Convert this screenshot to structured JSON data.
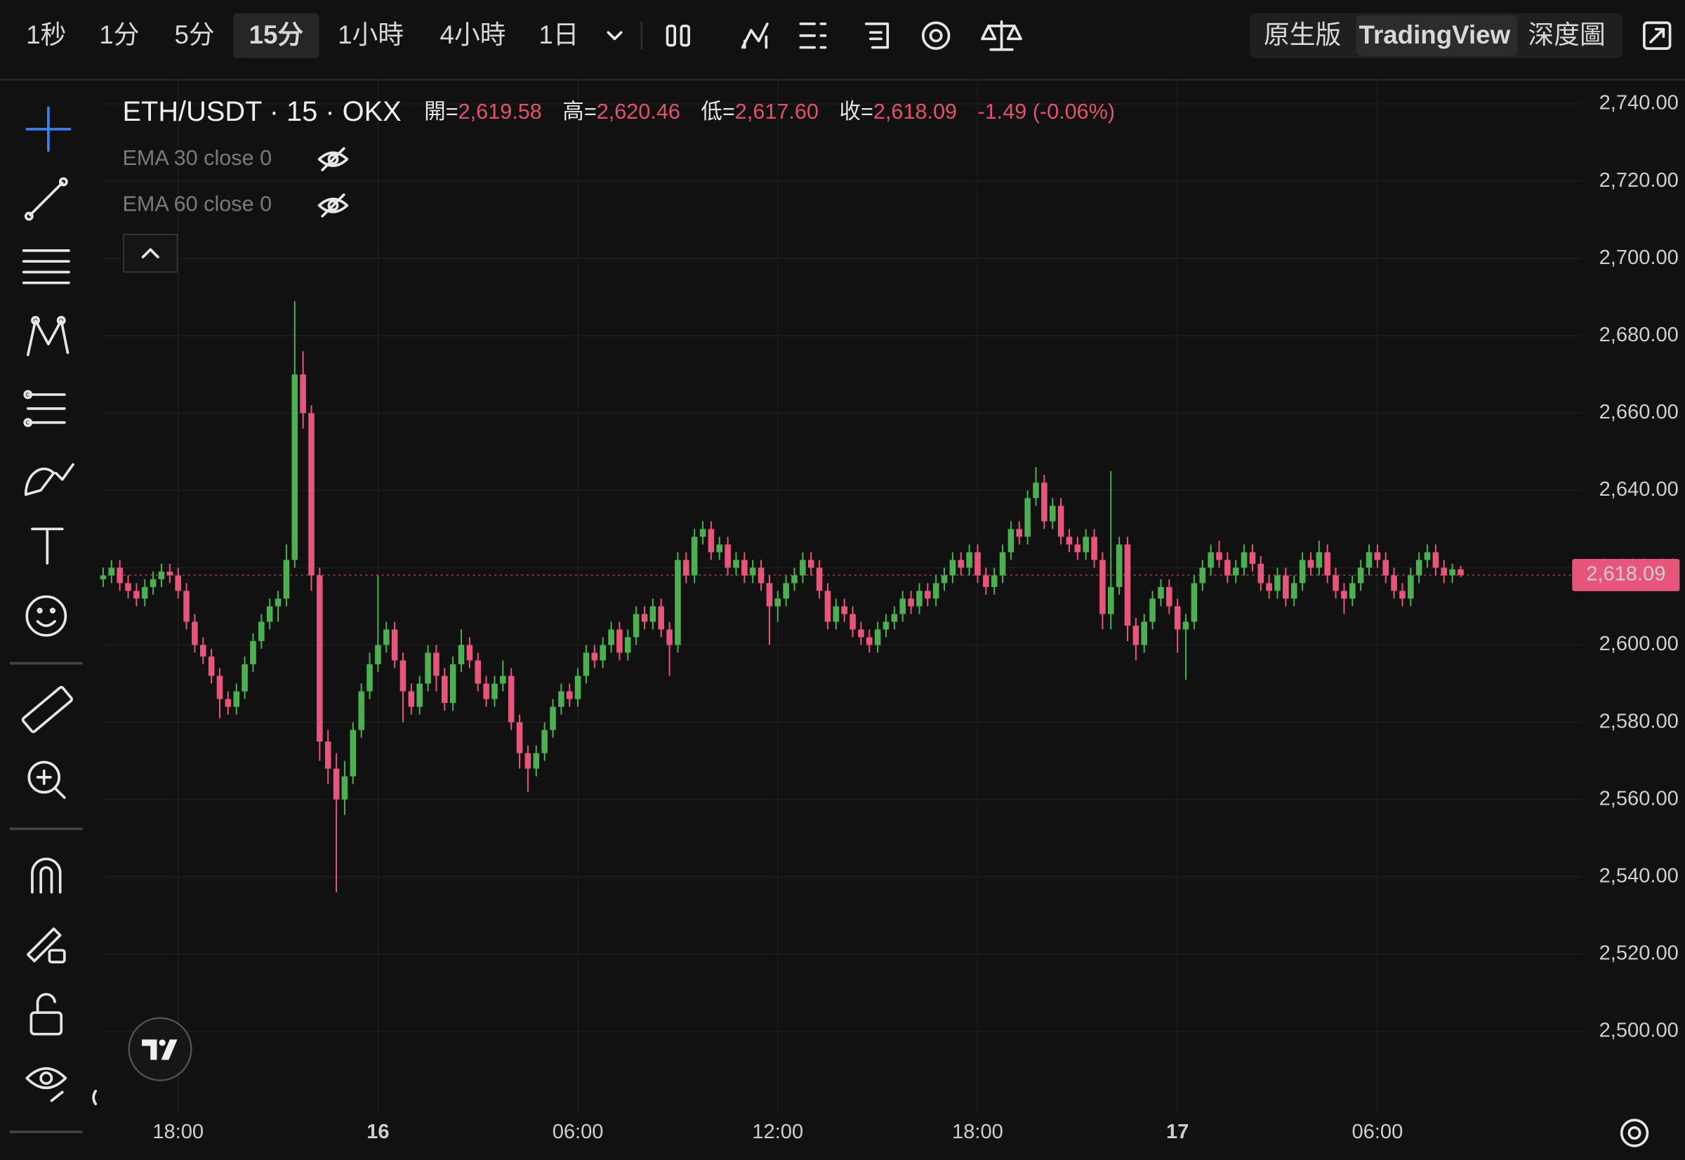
{
  "toolbar": {
    "intervals": [
      "1秒",
      "1分",
      "5分",
      "15分",
      "1小時",
      "4小時",
      "1日"
    ],
    "selected_interval": 3,
    "views": [
      "原生版",
      "TradingView",
      "深度圖"
    ],
    "selected_view": 1
  },
  "legend": {
    "symbol": "ETH/USDT · 15 · OKX",
    "open_label": "開=",
    "open": "2,619.58",
    "high_label": "高=",
    "high": "2,620.46",
    "low_label": "低=",
    "low": "2,617.60",
    "close_label": "收=",
    "close": "2,618.09",
    "change": "-1.49 (-0.06%)"
  },
  "indicators": [
    "EMA 30 close 0",
    "EMA 60 close 0"
  ],
  "chart_data": {
    "type": "candlestick",
    "up_color": "#4caf50",
    "down_color": "#e8557a",
    "grid": true,
    "categories": [
      null,
      null,
      null,
      null,
      null,
      null,
      null,
      null,
      null,
      "18:00",
      null,
      null,
      null,
      null,
      null,
      null,
      null,
      null,
      null,
      null,
      null,
      null,
      null,
      null,
      null,
      null,
      null,
      null,
      null,
      null,
      null,
      null,
      null,
      "16",
      null,
      null,
      null,
      null,
      null,
      null,
      null,
      null,
      null,
      null,
      null,
      null,
      null,
      null,
      null,
      null,
      null,
      null,
      null,
      null,
      null,
      null,
      null,
      "06:00",
      null,
      null,
      null,
      null,
      null,
      null,
      null,
      null,
      null,
      null,
      null,
      null,
      null,
      null,
      null,
      null,
      null,
      null,
      null,
      null,
      null,
      null,
      null,
      "12:00",
      null,
      null,
      null,
      null,
      null,
      null,
      null,
      null,
      null,
      null,
      null,
      null,
      null,
      null,
      null,
      null,
      null,
      null,
      null,
      null,
      null,
      null,
      null,
      "18:00",
      null,
      null,
      null,
      null,
      null,
      null,
      null,
      null,
      null,
      null,
      null,
      null,
      null,
      null,
      null,
      null,
      null,
      null,
      null,
      null,
      null,
      null,
      null,
      "17",
      null,
      null,
      null,
      null,
      null,
      null,
      null,
      null,
      null,
      null,
      null,
      null,
      null,
      null,
      null,
      null,
      null,
      null,
      null,
      null,
      null,
      null,
      null,
      "06:00",
      null,
      null,
      null,
      null,
      null,
      null,
      null,
      null,
      null,
      null
    ],
    "ohlc": [
      [
        2617,
        2620,
        2615,
        2618
      ],
      [
        2618,
        2622,
        2616,
        2620
      ],
      [
        2620,
        2622,
        2614,
        2616
      ],
      [
        2616,
        2618,
        2612,
        2614
      ],
      [
        2614,
        2616,
        2610,
        2612
      ],
      [
        2612,
        2617,
        2610,
        2615
      ],
      [
        2615,
        2619,
        2613,
        2617
      ],
      [
        2617,
        2621,
        2615,
        2619
      ],
      [
        2619,
        2621,
        2616,
        2618
      ],
      [
        2618,
        2620,
        2612,
        2614
      ],
      [
        2614,
        2616,
        2604,
        2606
      ],
      [
        2606,
        2608,
        2598,
        2600
      ],
      [
        2600,
        2602,
        2595,
        2597
      ],
      [
        2597,
        2599,
        2590,
        2592
      ],
      [
        2592,
        2594,
        2581,
        2586
      ],
      [
        2586,
        2588,
        2582,
        2584
      ],
      [
        2584,
        2590,
        2582,
        2588
      ],
      [
        2588,
        2597,
        2586,
        2595
      ],
      [
        2595,
        2603,
        2593,
        2601
      ],
      [
        2601,
        2608,
        2599,
        2606
      ],
      [
        2606,
        2612,
        2604,
        2610
      ],
      [
        2610,
        2614,
        2606,
        2612
      ],
      [
        2612,
        2626,
        2610,
        2622
      ],
      [
        2622,
        2689,
        2620,
        2670
      ],
      [
        2670,
        2676,
        2656,
        2660
      ],
      [
        2660,
        2662,
        2614,
        2618
      ],
      [
        2618,
        2620,
        2570,
        2575
      ],
      [
        2575,
        2578,
        2564,
        2568
      ],
      [
        2568,
        2572,
        2536,
        2560
      ],
      [
        2560,
        2570,
        2556,
        2566
      ],
      [
        2566,
        2580,
        2564,
        2578
      ],
      [
        2578,
        2590,
        2576,
        2588
      ],
      [
        2588,
        2598,
        2586,
        2595
      ],
      [
        2595,
        2618,
        2593,
        2600
      ],
      [
        2600,
        2606,
        2598,
        2604
      ],
      [
        2604,
        2606,
        2594,
        2596
      ],
      [
        2596,
        2598,
        2580,
        2588
      ],
      [
        2588,
        2590,
        2582,
        2584
      ],
      [
        2584,
        2592,
        2582,
        2590
      ],
      [
        2590,
        2600,
        2588,
        2598
      ],
      [
        2598,
        2600,
        2588,
        2592
      ],
      [
        2592,
        2594,
        2583,
        2585
      ],
      [
        2585,
        2597,
        2583,
        2595
      ],
      [
        2595,
        2604,
        2593,
        2600
      ],
      [
        2600,
        2602,
        2594,
        2596
      ],
      [
        2596,
        2598,
        2588,
        2590
      ],
      [
        2590,
        2592,
        2584,
        2586
      ],
      [
        2586,
        2592,
        2584,
        2590
      ],
      [
        2590,
        2596,
        2588,
        2592
      ],
      [
        2592,
        2594,
        2578,
        2580
      ],
      [
        2580,
        2582,
        2568,
        2572
      ],
      [
        2572,
        2574,
        2562,
        2568
      ],
      [
        2568,
        2574,
        2566,
        2572
      ],
      [
        2572,
        2580,
        2570,
        2578
      ],
      [
        2578,
        2586,
        2576,
        2584
      ],
      [
        2584,
        2590,
        2582,
        2588
      ],
      [
        2588,
        2590,
        2584,
        2586
      ],
      [
        2586,
        2594,
        2584,
        2592
      ],
      [
        2592,
        2600,
        2590,
        2598
      ],
      [
        2598,
        2600,
        2594,
        2596
      ],
      [
        2596,
        2602,
        2594,
        2600
      ],
      [
        2600,
        2606,
        2598,
        2604
      ],
      [
        2604,
        2606,
        2596,
        2598
      ],
      [
        2598,
        2604,
        2596,
        2602
      ],
      [
        2602,
        2610,
        2600,
        2608
      ],
      [
        2608,
        2610,
        2604,
        2606
      ],
      [
        2606,
        2612,
        2604,
        2610
      ],
      [
        2610,
        2612,
        2602,
        2604
      ],
      [
        2604,
        2606,
        2592,
        2600
      ],
      [
        2600,
        2624,
        2598,
        2622
      ],
      [
        2622,
        2624,
        2616,
        2618
      ],
      [
        2618,
        2630,
        2616,
        2628
      ],
      [
        2628,
        2632,
        2626,
        2630
      ],
      [
        2630,
        2632,
        2622,
        2624
      ],
      [
        2624,
        2628,
        2622,
        2626
      ],
      [
        2626,
        2628,
        2618,
        2620
      ],
      [
        2620,
        2624,
        2618,
        2622
      ],
      [
        2622,
        2624,
        2616,
        2618
      ],
      [
        2618,
        2622,
        2616,
        2620
      ],
      [
        2620,
        2622,
        2614,
        2616
      ],
      [
        2616,
        2618,
        2600,
        2610
      ],
      [
        2610,
        2614,
        2606,
        2612
      ],
      [
        2612,
        2618,
        2610,
        2616
      ],
      [
        2616,
        2620,
        2614,
        2618
      ],
      [
        2618,
        2624,
        2616,
        2622
      ],
      [
        2622,
        2624,
        2618,
        2620
      ],
      [
        2620,
        2622,
        2612,
        2614
      ],
      [
        2614,
        2616,
        2604,
        2606
      ],
      [
        2606,
        2612,
        2604,
        2610
      ],
      [
        2610,
        2612,
        2606,
        2608
      ],
      [
        2608,
        2610,
        2602,
        2604
      ],
      [
        2604,
        2606,
        2600,
        2602
      ],
      [
        2602,
        2604,
        2598,
        2600
      ],
      [
        2600,
        2606,
        2598,
        2604
      ],
      [
        2604,
        2608,
        2602,
        2606
      ],
      [
        2606,
        2610,
        2604,
        2608
      ],
      [
        2608,
        2614,
        2606,
        2612
      ],
      [
        2612,
        2614,
        2608,
        2610
      ],
      [
        2610,
        2616,
        2608,
        2614
      ],
      [
        2614,
        2616,
        2610,
        2612
      ],
      [
        2612,
        2618,
        2610,
        2616
      ],
      [
        2616,
        2620,
        2614,
        2618
      ],
      [
        2618,
        2624,
        2616,
        2622
      ],
      [
        2622,
        2624,
        2618,
        2620
      ],
      [
        2620,
        2626,
        2618,
        2624
      ],
      [
        2624,
        2626,
        2616,
        2618
      ],
      [
        2618,
        2620,
        2613,
        2615
      ],
      [
        2615,
        2620,
        2613,
        2618
      ],
      [
        2618,
        2626,
        2616,
        2624
      ],
      [
        2624,
        2632,
        2622,
        2630
      ],
      [
        2630,
        2632,
        2626,
        2628
      ],
      [
        2628,
        2640,
        2626,
        2638
      ],
      [
        2638,
        2646,
        2636,
        2642
      ],
      [
        2642,
        2644,
        2630,
        2632
      ],
      [
        2632,
        2638,
        2630,
        2636
      ],
      [
        2636,
        2638,
        2626,
        2628
      ],
      [
        2628,
        2630,
        2624,
        2626
      ],
      [
        2626,
        2628,
        2622,
        2624
      ],
      [
        2624,
        2630,
        2622,
        2628
      ],
      [
        2628,
        2630,
        2620,
        2622
      ],
      [
        2622,
        2624,
        2604,
        2608
      ],
      [
        2608,
        2645,
        2604,
        2615
      ],
      [
        2615,
        2628,
        2613,
        2626
      ],
      [
        2626,
        2628,
        2601,
        2605
      ],
      [
        2605,
        2607,
        2596,
        2600
      ],
      [
        2600,
        2608,
        2598,
        2606
      ],
      [
        2606,
        2614,
        2604,
        2612
      ],
      [
        2612,
        2617,
        2610,
        2615
      ],
      [
        2615,
        2617,
        2608,
        2610
      ],
      [
        2610,
        2612,
        2598,
        2604
      ],
      [
        2604,
        2608,
        2591,
        2606
      ],
      [
        2606,
        2618,
        2604,
        2616
      ],
      [
        2616,
        2622,
        2614,
        2620
      ],
      [
        2620,
        2626,
        2618,
        2624
      ],
      [
        2624,
        2627,
        2620,
        2622
      ],
      [
        2622,
        2624,
        2616,
        2618
      ],
      [
        2618,
        2622,
        2616,
        2620
      ],
      [
        2620,
        2626,
        2618,
        2624
      ],
      [
        2624,
        2626,
        2619,
        2621
      ],
      [
        2621,
        2623,
        2614,
        2616
      ],
      [
        2616,
        2618,
        2612,
        2614
      ],
      [
        2614,
        2620,
        2612,
        2618
      ],
      [
        2618,
        2620,
        2610,
        2612
      ],
      [
        2612,
        2618,
        2610,
        2616
      ],
      [
        2616,
        2624,
        2614,
        2622
      ],
      [
        2622,
        2624,
        2618,
        2620
      ],
      [
        2620,
        2627,
        2618,
        2624
      ],
      [
        2624,
        2626,
        2616,
        2618
      ],
      [
        2618,
        2620,
        2612,
        2614
      ],
      [
        2614,
        2616,
        2608,
        2612
      ],
      [
        2612,
        2618,
        2610,
        2616
      ],
      [
        2616,
        2622,
        2614,
        2620
      ],
      [
        2620,
        2626,
        2618,
        2624
      ],
      [
        2624,
        2626,
        2620,
        2622
      ],
      [
        2622,
        2624,
        2616,
        2618
      ],
      [
        2618,
        2620,
        2612,
        2614
      ],
      [
        2614,
        2616,
        2610,
        2612
      ],
      [
        2612,
        2620,
        2610,
        2618
      ],
      [
        2618,
        2624,
        2616,
        2622
      ],
      [
        2622,
        2626,
        2620,
        2624
      ],
      [
        2624,
        2626,
        2618,
        2620
      ],
      [
        2620,
        2622,
        2616,
        2618
      ],
      [
        2618,
        2621,
        2616,
        2619.58
      ],
      [
        2619.58,
        2620.46,
        2617.6,
        2618.09
      ]
    ],
    "ylim": [
      2479,
      2746
    ],
    "yticks": [
      {
        "value": 2500,
        "label": "2,500.00"
      },
      {
        "value": 2520,
        "label": "2,520.00"
      },
      {
        "value": 2540,
        "label": "2,540.00"
      },
      {
        "value": 2560,
        "label": "2,560.00"
      },
      {
        "value": 2580,
        "label": "2,580.00"
      },
      {
        "value": 2600,
        "label": "2,600.00"
      },
      {
        "value": 2620,
        "label": "2,620.00"
      },
      {
        "value": 2640,
        "label": "2,640.00"
      },
      {
        "value": 2660,
        "label": "2,660.00"
      },
      {
        "value": 2680,
        "label": "2,680.00"
      },
      {
        "value": 2700,
        "label": "2,700.00"
      },
      {
        "value": 2720,
        "label": "2,720.00"
      },
      {
        "value": 2740,
        "label": "2,740.00"
      }
    ],
    "last_price": {
      "value": 2618.09,
      "label": "2,618.09"
    }
  }
}
